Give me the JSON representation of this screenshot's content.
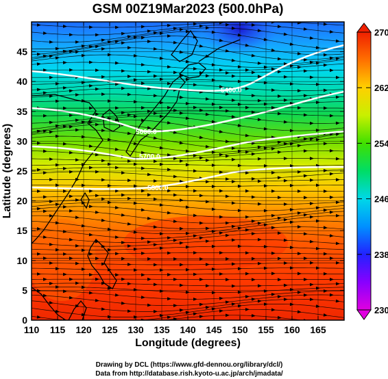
{
  "title": "GSM 00Z19Mar2023 (500.0hPa)",
  "x_axis": {
    "label": "Longitude (degrees)",
    "range": [
      110,
      170
    ],
    "ticks": [
      "110",
      "115",
      "120",
      "125",
      "130",
      "135",
      "140",
      "145",
      "150",
      "155",
      "160",
      "165"
    ]
  },
  "y_axis": {
    "label": "Latitude  (degrees)",
    "range": [
      0,
      50
    ],
    "ticks": [
      "0",
      "5",
      "10",
      "15",
      "20",
      "25",
      "30",
      "35",
      "40",
      "45"
    ]
  },
  "colorbar": {
    "range": [
      230,
      270
    ],
    "ticks": [
      "230",
      "238",
      "246",
      "254",
      "262",
      "270"
    ],
    "colors": [
      "#e000e0",
      "#8800ff",
      "#2222ff",
      "#00a0ff",
      "#00e0e0",
      "#00dd66",
      "#40e000",
      "#c8f000",
      "#ffe000",
      "#ff9800",
      "#ff4400",
      "#f02000"
    ]
  },
  "contours": [
    {
      "label": "5400.0"
    },
    {
      "label": "5600.0"
    },
    {
      "label": "5700.0"
    },
    {
      "label": "5800.0"
    }
  ],
  "credits": [
    "Drawing by DCL (https://www.gfd-dennou.org/library/dcl/)",
    "Data from http://database.rish.kyoto-u.ac.jp/arch/jmadata/"
  ]
}
